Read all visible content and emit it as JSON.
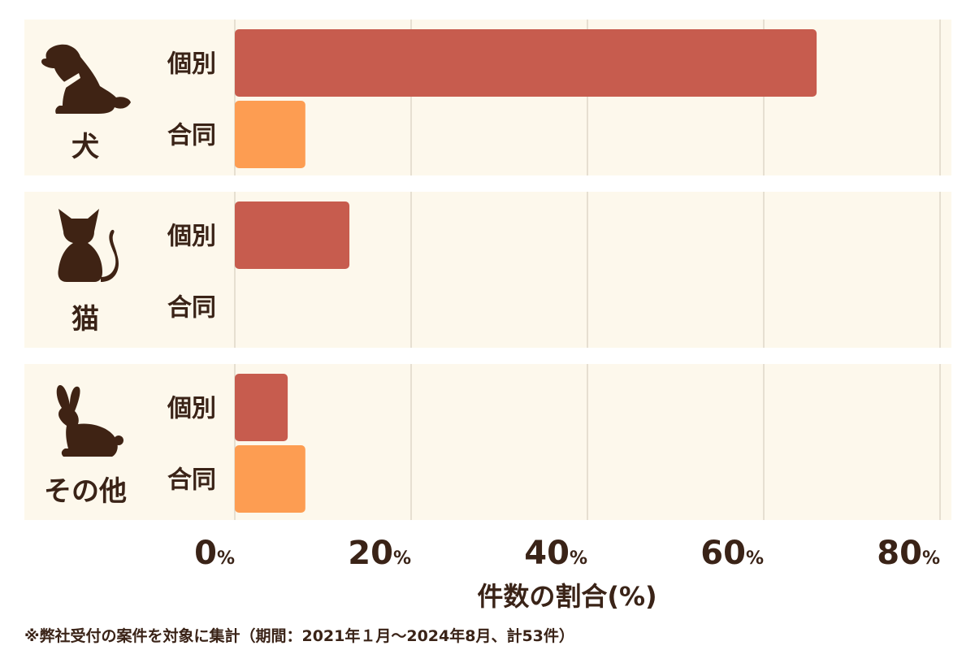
{
  "chart_data": {
    "type": "bar",
    "orientation": "horizontal",
    "groups": [
      {
        "label": "犬",
        "icon": "dog-icon",
        "bars": [
          {
            "label": "個別",
            "value": 66
          },
          {
            "label": "合同",
            "value": 8
          }
        ]
      },
      {
        "label": "猫",
        "icon": "cat-icon",
        "bars": [
          {
            "label": "個別",
            "value": 13
          },
          {
            "label": "合同",
            "value": 0
          }
        ]
      },
      {
        "label": "その他",
        "icon": "rabbit-icon",
        "bars": [
          {
            "label": "個別",
            "value": 6
          },
          {
            "label": "合同",
            "value": 8
          }
        ]
      }
    ],
    "series": [
      {
        "name": "個別",
        "color": "#c75c4e"
      },
      {
        "name": "合同",
        "color": "#fd9d52"
      }
    ],
    "xlim": [
      0,
      80
    ],
    "xticks": [
      0,
      20,
      40,
      60,
      80
    ],
    "tick_unit": "%",
    "xlabel": "件数の割合(%)",
    "grid": true,
    "panel_color": "#fdf8ec",
    "text_color": "#3a2317",
    "icon_color": "#3f2314"
  },
  "footnote": "※弊社受付の案件を対象に集計（期間：2021年１月〜2024年8月、計53件）"
}
